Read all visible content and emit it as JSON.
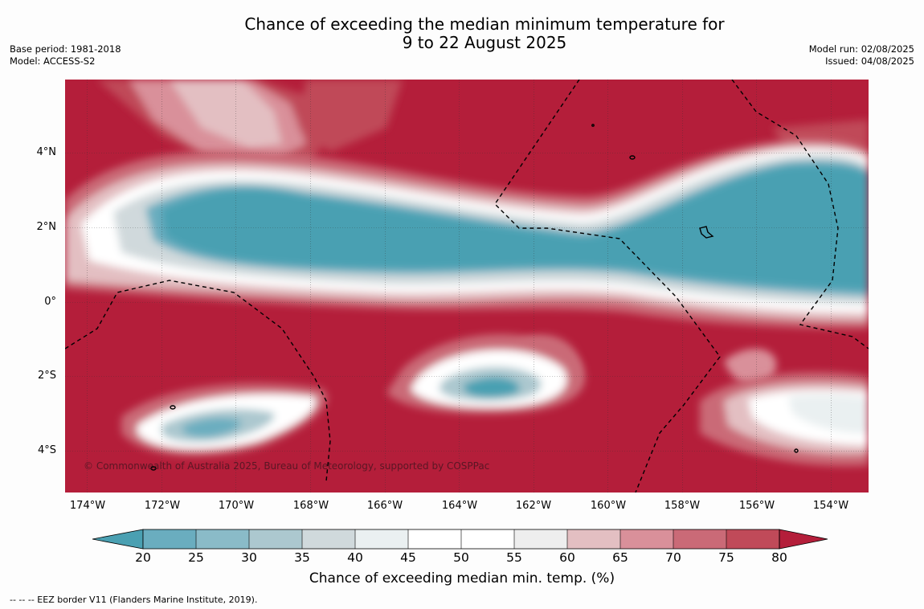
{
  "title": {
    "line1": "Chance of exceeding the median minimum temperature for",
    "line2": "9 to 22 August 2025"
  },
  "meta": {
    "base_period": "Base period: 1981-2018",
    "model": "Model: ACCESS-S2",
    "model_run": "Model run: 02/08/2025",
    "issued": "Issued: 04/08/2025"
  },
  "map": {
    "lat_labels": [
      "4°N",
      "2°N",
      "0°",
      "2°S",
      "4°S"
    ],
    "lon_labels": [
      "174°W",
      "172°W",
      "170°W",
      "168°W",
      "166°W",
      "164°W",
      "162°W",
      "160°W",
      "158°W",
      "156°W",
      "154°W"
    ],
    "copyright": "© Commonwealth of Australia 2025, Bureau of Meteorology, supported by COSPPac",
    "colors": {
      "high": "#b41e3a",
      "low": "#4aa0b2",
      "eez_line": "#000000"
    }
  },
  "colorbar": {
    "title": "Chance of exceeding median min. temp. (%)",
    "ticks": [
      "20",
      "25",
      "30",
      "35",
      "40",
      "45",
      "50",
      "55",
      "60",
      "65",
      "70",
      "75",
      "80"
    ],
    "colors": [
      "#4aa0b2",
      "#6aadbf",
      "#8abbc8",
      "#acc8cf",
      "#d0d9dc",
      "#eaf0f1",
      "#ffffff",
      "#ffffff",
      "#eeeeee",
      "#e3bfc2",
      "#d9909a",
      "#ca6a77",
      "#c04a59",
      "#b41e3a"
    ]
  },
  "footer": "--  --  -- EEZ border V11 (Flanders Marine Institute, 2019)."
}
